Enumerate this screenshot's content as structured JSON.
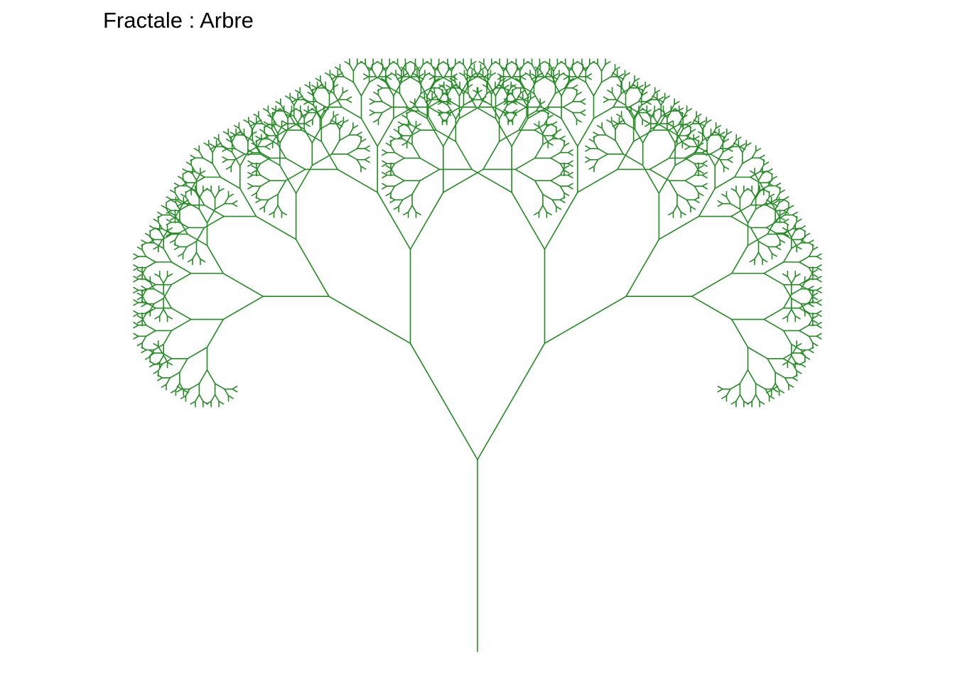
{
  "plot": {
    "title": "Fractale : Arbre",
    "line_color": "#228B22",
    "background": "#ffffff"
  },
  "fractal": {
    "type": "binary-tree",
    "branch_angle_deg": 60,
    "length_ratio": 0.7,
    "depth": 10
  }
}
